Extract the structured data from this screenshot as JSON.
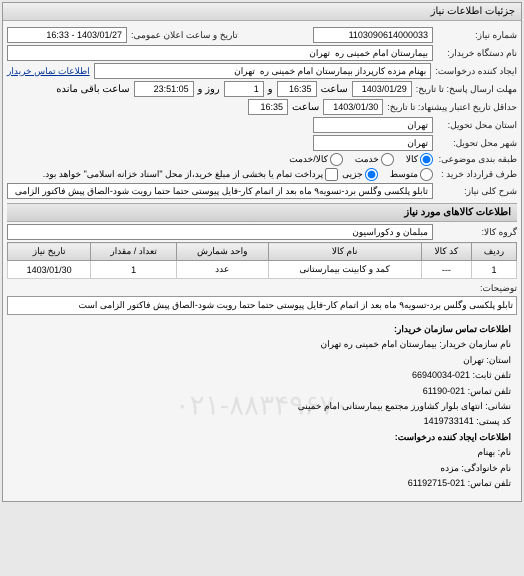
{
  "panel_title": "جزئیات اطلاعات نیاز",
  "fields": {
    "request_no_label": "شماره نیاز:",
    "request_no": "1103090614000033",
    "announce_label": "تاریخ و ساعت اعلان عمومی:",
    "announce_value": "1403/01/27 - 16:33",
    "buyer_org_label": "نام دستگاه خریدار:",
    "buyer_org": "بیمارستان امام خمینی ره  تهران",
    "creator_label": "ایجاد کننده درخواست:",
    "creator": "بهنام مزده کارپرداز بیمارستان امام خمینی ره  تهران",
    "contact_link": "اطلاعات تماس خریدار",
    "deadline_send_label": "مهلت ارسال پاسخ: تا تاریخ:",
    "deadline_send_date": "1403/01/29",
    "time_label": "ساعت",
    "deadline_send_time": "16:35",
    "remain_label1": "و",
    "remain_days": "1",
    "remain_label2": "روز و",
    "remain_time": "23:51:05",
    "remain_label3": "ساعت باقی مانده",
    "validity_label": "حداقل تاریخ اعتبار پیشنهاد: تا تاریخ:",
    "validity_date": "1403/01/30",
    "validity_time": "16:35",
    "province_label": "استان محل تحویل:",
    "province": "تهران",
    "city_label": "شهر محل تحویل:",
    "city": "تهران",
    "pkg_label": "طبقه بندی موضوعی:",
    "pkg_radio1": "کالا",
    "pkg_radio2": "خدمت",
    "pkg_radio3": "کالا/خدمت",
    "buy_type_label": "طرف قرارداد خرید :",
    "buy_radio1": "متوسط",
    "buy_radio2": "جزیی",
    "buy_note": "پرداخت تمام یا بخشی از مبلغ خرید،از محل \"اسناد خزانه اسلامی\" خواهد بود.",
    "need_title_label": "شرح کلی نیاز:",
    "need_title": "تابلو پلکسی وگلس برد-تسویه۹ ماه بعد از اتمام کار-فایل پیوستی حتما حتما رویت شود-الصاق پیش فاکتور الزامی است"
  },
  "goods_section": "اطلاعات کالاهای مورد نیاز",
  "goods_group_label": "گروه کالا:",
  "goods_group": "مبلمان و دکوراسیون",
  "table": {
    "columns": [
      "ردیف",
      "کد کالا",
      "نام کالا",
      "واحد شمارش",
      "تعداد / مقدار",
      "تاریخ نیاز"
    ],
    "rows": [
      [
        "1",
        "---",
        "کمد و کابینت بیمارستانی",
        "عدد",
        "1",
        "1403/01/30"
      ]
    ]
  },
  "desc_label": "توضیحات:",
  "desc_text": "تابلو پلکسی وگلس برد-تسویه۹ ماه بعد از اتمام کار-فایل پیوستی حتما حتما رویت شود-الصاق پیش فاکتور الزامی است",
  "contact_section_title": "اطلاعات تماس سازمان خریدار:",
  "contact": {
    "org_name_label": "نام سازمان خریدار:",
    "org_name": "بیمارستان امام خمینی ره تهران",
    "province_label": "استان:",
    "province": "تهران",
    "phone_label": "تلفن ثابت:",
    "phone": "66940034-021",
    "fax_label": "تلفن تماس:",
    "fax": "61190-021",
    "address_label": "نشانی:",
    "address": "انتهای بلوار کشاورز مجتمع بیمارستانی امام خمینی",
    "postal_label": "کد پستی:",
    "postal": "1419733141"
  },
  "creator_section_title": "اطلاعات ایجاد کننده درخواست:",
  "creator_info": {
    "name_label": "نام:",
    "name": "بهنام",
    "family_label": "نام خانوادگی:",
    "family": "مزده",
    "phone_label": "تلفن تماس:",
    "phone": "61192715-021"
  },
  "watermark": "۰۲۱-۸۸۳۴۹۶۷۰"
}
